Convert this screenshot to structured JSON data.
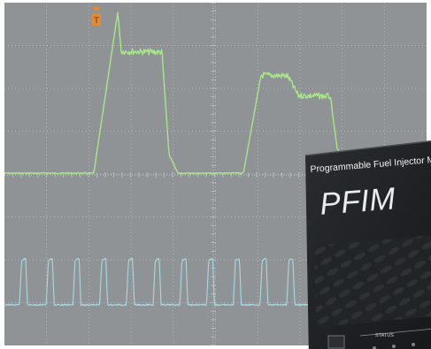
{
  "device": {
    "subtitle": "Programmable Fuel Injector Mo",
    "title": "PFIM",
    "status_label": "STATUS"
  },
  "colors": {
    "screen_background": "#8f9396",
    "grid": "#c2c6c8",
    "upper_trace": "#a8e68a",
    "lower_trace": "#a9d9e3",
    "trigger_marker": "#e08a3a",
    "device_body": "#1b1d1f"
  },
  "icons": {
    "trigger_marker": "trigger-marker-icon"
  }
}
